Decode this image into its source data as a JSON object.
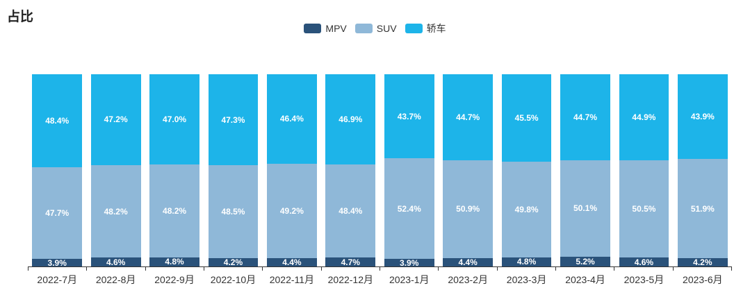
{
  "title": "占比",
  "colors": {
    "mpv": "#2a527a",
    "suv": "#8fb8d8",
    "sedan": "#1db4e9",
    "axis": "#333333",
    "title_text": "#222222",
    "background": "#ffffff",
    "bar_label_text": "#ffffff"
  },
  "chart_data": {
    "type": "bar",
    "stacked": true,
    "title": "占比",
    "xlabel": "",
    "ylabel": "",
    "ylim": [
      0,
      103
    ],
    "grid": false,
    "legend_position": "top-center",
    "value_suffix": "%",
    "categories": [
      "2022-7月",
      "2022-8月",
      "2022-9月",
      "2022-10月",
      "2022-11月",
      "2022-12月",
      "2023-1月",
      "2023-2月",
      "2023-3月",
      "2023-4月",
      "2023-5月",
      "2023-6月"
    ],
    "series": [
      {
        "name": "MPV",
        "color": "#2a527a",
        "values": [
          3.9,
          4.6,
          4.8,
          4.2,
          4.4,
          4.7,
          3.9,
          4.4,
          4.8,
          5.2,
          4.6,
          4.2
        ]
      },
      {
        "name": "SUV",
        "color": "#8fb8d8",
        "values": [
          47.7,
          48.2,
          48.2,
          48.5,
          49.2,
          48.4,
          52.4,
          50.9,
          49.8,
          50.1,
          50.5,
          51.9
        ]
      },
      {
        "name": "轿车",
        "color": "#1db4e9",
        "values": [
          48.4,
          47.2,
          47.0,
          47.3,
          46.4,
          46.9,
          43.7,
          44.7,
          45.5,
          44.7,
          44.9,
          43.9
        ]
      }
    ]
  }
}
